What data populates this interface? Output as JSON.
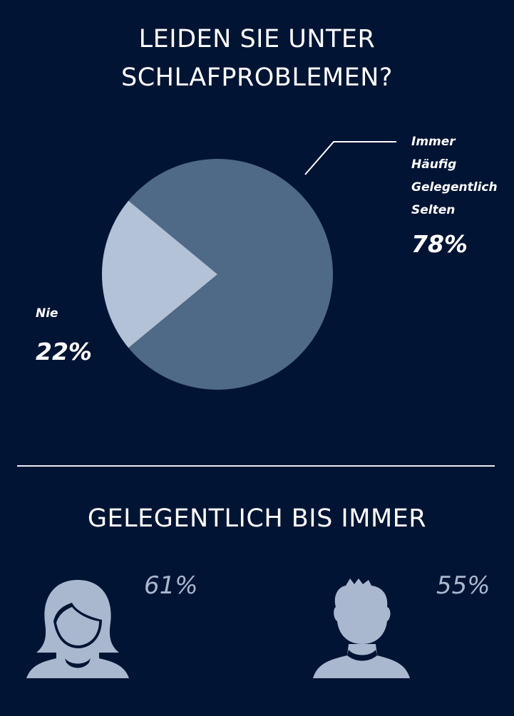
{
  "title_lines": [
    "LEIDEN SIE UNTER",
    "SCHLAFPROBLEMEN?"
  ],
  "chart_data": {
    "type": "pie",
    "slices": [
      {
        "label_lines": [
          "Immer",
          "Häufig",
          "Gelegentlich",
          "Selten"
        ],
        "value": 78,
        "display": "78%",
        "color": "#4e6a87"
      },
      {
        "label_lines": [
          "Nie"
        ],
        "value": 22,
        "display": "22%",
        "color": "#b3c2d6"
      }
    ]
  },
  "subtitle": "GELEGENTLICH BIS IMMER",
  "stats": [
    {
      "group_icon": "female-person-icon",
      "value": "61%"
    },
    {
      "group_icon": "male-person-icon",
      "value": "55%"
    }
  ],
  "colors": {
    "background": "#021434",
    "icon": "#aab8cf",
    "text": "#ffffff"
  }
}
